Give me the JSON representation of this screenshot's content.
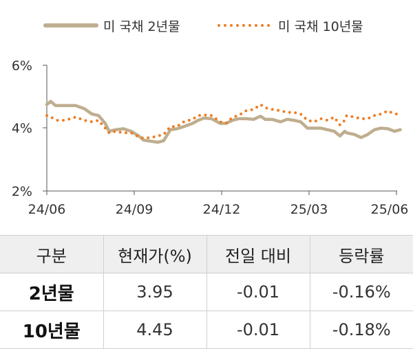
{
  "chart_data": {
    "type": "line",
    "x_ticks": [
      "24/06",
      "24/09",
      "24/12",
      "25/03",
      "25/06"
    ],
    "y_ticks": [
      "6%",
      "4%",
      "2%"
    ],
    "ylim": [
      2,
      6
    ],
    "grid": false,
    "legend_position": "top",
    "series": [
      {
        "name": "미 국채 2년물",
        "style": "solid",
        "color": "#bfae8f",
        "x": [
          "2024-06-01",
          "2024-06-05",
          "2024-06-10",
          "2024-06-20",
          "2024-07-01",
          "2024-07-10",
          "2024-07-18",
          "2024-07-25",
          "2024-08-01",
          "2024-08-05",
          "2024-08-12",
          "2024-08-20",
          "2024-08-28",
          "2024-09-05",
          "2024-09-10",
          "2024-09-18",
          "2024-09-25",
          "2024-10-01",
          "2024-10-08",
          "2024-10-15",
          "2024-10-22",
          "2024-10-31",
          "2024-11-06",
          "2024-11-12",
          "2024-11-20",
          "2024-11-29",
          "2024-12-05",
          "2024-12-12",
          "2024-12-18",
          "2024-12-26",
          "2025-01-03",
          "2025-01-10",
          "2025-01-15",
          "2025-01-22",
          "2025-01-31",
          "2025-02-07",
          "2025-02-14",
          "2025-02-21",
          "2025-02-28",
          "2025-03-07",
          "2025-03-14",
          "2025-03-21",
          "2025-03-28",
          "2025-04-03",
          "2025-04-08",
          "2025-04-10",
          "2025-04-18",
          "2025-04-25",
          "2025-05-02",
          "2025-05-09",
          "2025-05-16",
          "2025-05-23",
          "2025-05-30",
          "2025-06-05"
        ],
        "y": [
          4.75,
          4.85,
          4.72,
          4.72,
          4.72,
          4.62,
          4.45,
          4.4,
          4.15,
          3.9,
          3.95,
          3.98,
          3.9,
          3.75,
          3.62,
          3.58,
          3.55,
          3.6,
          3.95,
          3.98,
          4.05,
          4.15,
          4.25,
          4.32,
          4.3,
          4.15,
          4.15,
          4.25,
          4.3,
          4.3,
          4.28,
          4.38,
          4.28,
          4.28,
          4.2,
          4.28,
          4.25,
          4.2,
          4.0,
          4.0,
          4.0,
          3.95,
          3.9,
          3.75,
          3.9,
          3.85,
          3.8,
          3.7,
          3.8,
          3.95,
          4.0,
          3.98,
          3.9,
          3.95
        ]
      },
      {
        "name": "미 국채 10년물",
        "style": "dotted",
        "color": "#ee7d23",
        "x": [
          "2024-06-01",
          "2024-06-05",
          "2024-06-12",
          "2024-06-20",
          "2024-07-01",
          "2024-07-10",
          "2024-07-18",
          "2024-07-25",
          "2024-08-01",
          "2024-08-05",
          "2024-08-12",
          "2024-08-20",
          "2024-08-28",
          "2024-09-05",
          "2024-09-10",
          "2024-09-18",
          "2024-09-25",
          "2024-10-01",
          "2024-10-08",
          "2024-10-15",
          "2024-10-22",
          "2024-10-31",
          "2024-11-06",
          "2024-11-12",
          "2024-11-20",
          "2024-11-29",
          "2024-12-05",
          "2024-12-12",
          "2024-12-18",
          "2024-12-26",
          "2025-01-03",
          "2025-01-10",
          "2025-01-15",
          "2025-01-22",
          "2025-01-31",
          "2025-02-07",
          "2025-02-14",
          "2025-02-21",
          "2025-02-28",
          "2025-03-07",
          "2025-03-14",
          "2025-03-21",
          "2025-03-28",
          "2025-04-03",
          "2025-04-08",
          "2025-04-10",
          "2025-04-18",
          "2025-04-25",
          "2025-05-02",
          "2025-05-09",
          "2025-05-16",
          "2025-05-23",
          "2025-05-30",
          "2025-06-05"
        ],
        "y": [
          4.4,
          4.35,
          4.25,
          4.25,
          4.35,
          4.25,
          4.2,
          4.25,
          4.0,
          3.85,
          3.9,
          3.85,
          3.85,
          3.72,
          3.68,
          3.7,
          3.75,
          3.8,
          4.05,
          4.05,
          4.2,
          4.28,
          4.4,
          4.42,
          4.4,
          4.2,
          4.15,
          4.35,
          4.4,
          4.55,
          4.6,
          4.75,
          4.65,
          4.6,
          4.55,
          4.5,
          4.5,
          4.45,
          4.25,
          4.2,
          4.3,
          4.25,
          4.35,
          4.1,
          4.25,
          4.4,
          4.35,
          4.3,
          4.3,
          4.4,
          4.45,
          4.55,
          4.45,
          4.45
        ]
      }
    ]
  },
  "table": {
    "headers": [
      "구분",
      "현재가(%)",
      "전일 대비",
      "등락률"
    ],
    "rows": [
      {
        "label": "2년물",
        "current": "3.95",
        "change": "-0.01",
        "rate": "-0.16%"
      },
      {
        "label": "10년물",
        "current": "4.45",
        "change": "-0.01",
        "rate": "-0.18%"
      }
    ]
  }
}
